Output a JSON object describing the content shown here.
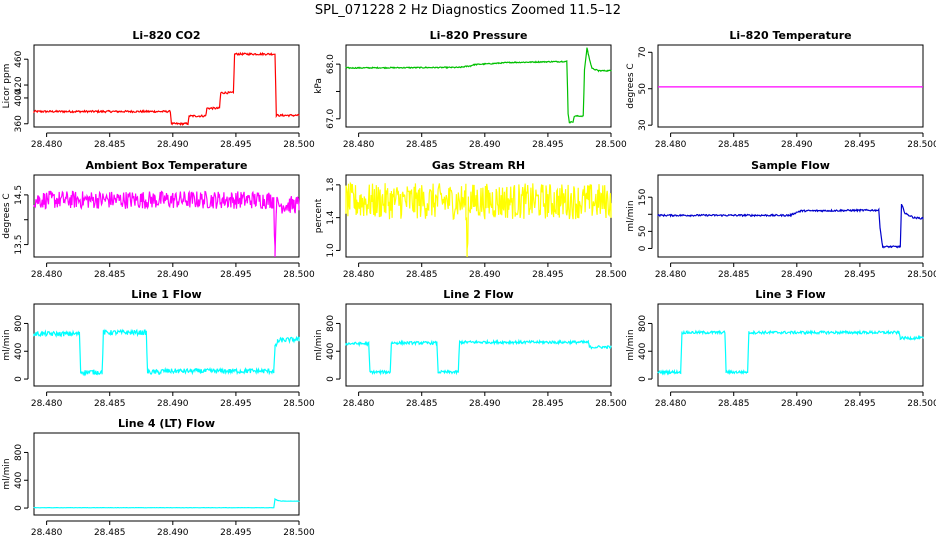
{
  "main_title": "SPL_071228  2 Hz Diagnostics Zoomed 11.5–12",
  "chart_data": [
    {
      "type": "line",
      "title": "Li–820 CO2",
      "ylabel": "Licor ppm",
      "color": "#ff0000",
      "xlim": [
        28.479,
        28.5
      ],
      "xticks": [
        28.48,
        28.485,
        28.49,
        28.495,
        28.5
      ],
      "xtick_labels": [
        "28.480",
        "28.485",
        "28.490",
        "28.495",
        "28.500"
      ],
      "ylim": [
        355,
        482
      ],
      "yticks": [
        360,
        400,
        420,
        460
      ],
      "ytick_labels": [
        "360",
        "400",
        "420",
        "460"
      ],
      "noise": 1.5,
      "x": [
        28.479,
        28.4898,
        28.4899,
        28.4912,
        28.4913,
        28.4926,
        28.4927,
        28.4937,
        28.4938,
        28.4948,
        28.4949,
        28.4981,
        28.4982,
        28.5
      ],
      "y": [
        379,
        379,
        360,
        360,
        372,
        372,
        384,
        384,
        408,
        408,
        468,
        468,
        373,
        373
      ]
    },
    {
      "type": "line",
      "title": "Li–820 Pressure",
      "ylabel": "kPa",
      "color": "#00c000",
      "xlim": [
        28.479,
        28.5
      ],
      "xticks": [
        28.48,
        28.485,
        28.49,
        28.495,
        28.5
      ],
      "xtick_labels": [
        "28.480",
        "28.485",
        "28.490",
        "28.495",
        "28.500"
      ],
      "ylim": [
        66.85,
        68.35
      ],
      "yticks": [
        67.0,
        67.5,
        68.0
      ],
      "ytick_labels": [
        "67.0",
        "",
        "68.0"
      ],
      "noise": 0.01,
      "x": [
        28.479,
        28.488,
        28.4889,
        28.4891,
        28.492,
        28.4965,
        28.4966,
        28.4967,
        28.497,
        28.4971,
        28.4978,
        28.4979,
        28.4981,
        28.4982,
        28.4985,
        28.499,
        28.5
      ],
      "y": [
        67.93,
        67.94,
        67.97,
        67.99,
        68.03,
        68.05,
        67.1,
        66.93,
        66.95,
        67.05,
        67.05,
        67.9,
        68.3,
        68.18,
        67.92,
        67.88,
        67.88
      ]
    },
    {
      "type": "line",
      "title": "Li–820 Temperature",
      "ylabel": "degrees C",
      "color": "#ff00ff",
      "xlim": [
        28.479,
        28.5
      ],
      "xticks": [
        28.48,
        28.485,
        28.49,
        28.495,
        28.5
      ],
      "xtick_labels": [
        "28.480",
        "28.485",
        "28.490",
        "28.495",
        "28.500"
      ],
      "ylim": [
        29,
        74
      ],
      "yticks": [
        30,
        50,
        70
      ],
      "ytick_labels": [
        "30",
        "50",
        "70"
      ],
      "noise": 0,
      "x": [
        28.479,
        28.5
      ],
      "y": [
        51,
        51
      ]
    },
    {
      "type": "line",
      "title": "Ambient Box Temperature",
      "ylabel": "degrees C",
      "color": "#ff00ff",
      "xlim": [
        28.479,
        28.5
      ],
      "xticks": [
        28.48,
        28.485,
        28.49,
        28.495,
        28.5
      ],
      "xtick_labels": [
        "28.480",
        "28.485",
        "28.490",
        "28.495",
        "28.500"
      ],
      "ylim": [
        13.25,
        14.9
      ],
      "yticks": [
        13.5,
        14.0,
        14.5
      ],
      "ytick_labels": [
        "13.5",
        "",
        "14.5"
      ],
      "noise": 0.18,
      "x": [
        28.479,
        28.498,
        28.4981,
        28.4982,
        28.5
      ],
      "y": [
        14.4,
        14.4,
        13.3,
        14.3,
        14.3
      ]
    },
    {
      "type": "line",
      "title": "Gas Stream RH",
      "ylabel": "percent",
      "color": "#ffff00",
      "xlim": [
        28.479,
        28.5
      ],
      "xticks": [
        28.48,
        28.485,
        28.49,
        28.495,
        28.5
      ],
      "xtick_labels": [
        "28.480",
        "28.485",
        "28.490",
        "28.495",
        "28.500"
      ],
      "ylim": [
        0.92,
        1.92
      ],
      "yticks": [
        1.0,
        1.4,
        1.8
      ],
      "ytick_labels": [
        "1.0",
        "1.4",
        "1.8"
      ],
      "noise": 0.22,
      "x": [
        28.479,
        28.4885,
        28.4886,
        28.4887,
        28.5
      ],
      "y": [
        1.6,
        1.6,
        0.95,
        1.6,
        1.6
      ]
    },
    {
      "type": "line",
      "title": "Sample Flow",
      "ylabel": "ml/min",
      "color": "#0000cc",
      "xlim": [
        28.479,
        28.5
      ],
      "xticks": [
        28.48,
        28.485,
        28.49,
        28.495,
        28.5
      ],
      "xtick_labels": [
        "28.480",
        "28.485",
        "28.490",
        "28.495",
        "28.500"
      ],
      "ylim": [
        -25,
        215
      ],
      "yticks": [
        0,
        50,
        100,
        150
      ],
      "ytick_labels": [
        "0",
        "50",
        "",
        "150"
      ],
      "noise": 2.5,
      "x": [
        28.479,
        28.4895,
        28.4898,
        28.4903,
        28.4965,
        28.4966,
        28.4968,
        28.4982,
        28.4983,
        28.4986,
        28.4993,
        28.5
      ],
      "y": [
        97,
        97,
        103,
        110,
        112,
        60,
        5,
        5,
        128,
        102,
        90,
        88
      ]
    },
    {
      "type": "line",
      "title": "Line 1 Flow",
      "ylabel": "ml/min",
      "color": "#00ffff",
      "xlim": [
        28.479,
        28.5
      ],
      "xticks": [
        28.48,
        28.485,
        28.49,
        28.495,
        28.5
      ],
      "xtick_labels": [
        "28.480",
        "28.485",
        "28.490",
        "28.495",
        "28.500"
      ],
      "ylim": [
        -100,
        1080
      ],
      "yticks": [
        0,
        400,
        800
      ],
      "ytick_labels": [
        "0",
        "400",
        "800"
      ],
      "noise": 35,
      "x": [
        28.479,
        28.4826,
        28.4827,
        28.4844,
        28.4845,
        28.4879,
        28.488,
        28.489,
        28.4891,
        28.498,
        28.4981,
        28.4983,
        28.4985,
        28.5
      ],
      "y": [
        650,
        650,
        100,
        100,
        670,
        670,
        100,
        100,
        115,
        115,
        450,
        540,
        560,
        570
      ]
    },
    {
      "type": "line",
      "title": "Line 2 Flow",
      "ylabel": "ml/min",
      "color": "#00ffff",
      "xlim": [
        28.479,
        28.5
      ],
      "xticks": [
        28.48,
        28.485,
        28.49,
        28.495,
        28.5
      ],
      "xtick_labels": [
        "28.480",
        "28.485",
        "28.490",
        "28.495",
        "28.500"
      ],
      "ylim": [
        -100,
        1080
      ],
      "yticks": [
        0,
        400,
        800
      ],
      "ytick_labels": [
        "0",
        "400",
        "800"
      ],
      "noise": 20,
      "x": [
        28.479,
        28.4808,
        28.4809,
        28.4825,
        28.4826,
        28.4862,
        28.4863,
        28.4879,
        28.488,
        28.4982,
        28.4983,
        28.5
      ],
      "y": [
        510,
        510,
        100,
        100,
        520,
        520,
        100,
        100,
        530,
        530,
        460,
        460
      ]
    },
    {
      "type": "line",
      "title": "Line 3 Flow",
      "ylabel": "ml/min",
      "color": "#00ffff",
      "xlim": [
        28.479,
        28.5
      ],
      "xticks": [
        28.48,
        28.485,
        28.49,
        28.495,
        28.5
      ],
      "xtick_labels": [
        "28.480",
        "28.485",
        "28.490",
        "28.495",
        "28.500"
      ],
      "ylim": [
        -100,
        1080
      ],
      "yticks": [
        0,
        400,
        800
      ],
      "ytick_labels": [
        "0",
        "400",
        "800"
      ],
      "noise": 20,
      "x": [
        28.479,
        28.4808,
        28.4809,
        28.4843,
        28.4844,
        28.4861,
        28.4862,
        28.4981,
        28.4982,
        28.5
      ],
      "y": [
        100,
        100,
        670,
        670,
        100,
        100,
        670,
        670,
        590,
        590
      ]
    },
    {
      "type": "line",
      "title": "Line 4 (LT) Flow",
      "ylabel": "ml/min",
      "color": "#00ffff",
      "xlim": [
        28.479,
        28.5
      ],
      "xticks": [
        28.48,
        28.485,
        28.49,
        28.495,
        28.5
      ],
      "xtick_labels": [
        "28.480",
        "28.485",
        "28.490",
        "28.495",
        "28.500"
      ],
      "ylim": [
        -100,
        1080
      ],
      "yticks": [
        0,
        400,
        800
      ],
      "ytick_labels": [
        "0",
        "400",
        "800"
      ],
      "noise": 2,
      "x": [
        28.479,
        28.498,
        28.4981,
        28.4983,
        28.4986,
        28.5
      ],
      "y": [
        5,
        5,
        130,
        110,
        100,
        100
      ]
    }
  ]
}
